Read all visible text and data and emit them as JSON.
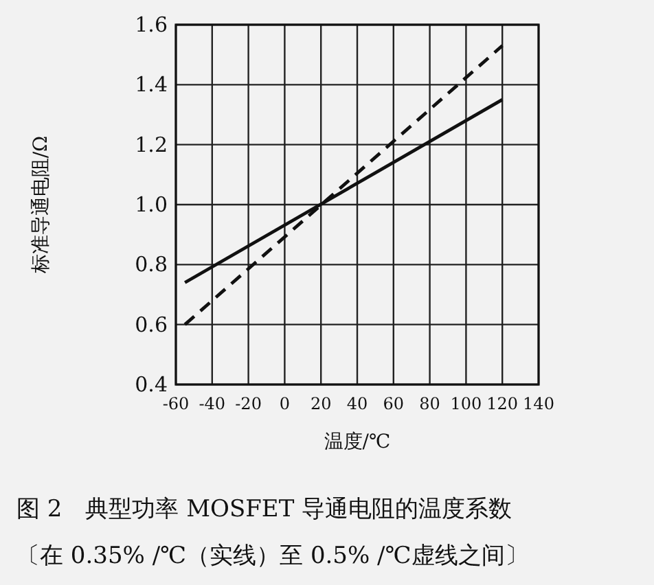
{
  "chart_data": {
    "type": "line",
    "title": "图 2　典型功率 MOSFET 导通电阻的温度系数",
    "subtitle": "〔在 0.35% /℃（实线）至 0.5% /℃虚线之间〕",
    "xlabel": "温度/℃",
    "ylabel": "标准导通电阻/Ω",
    "x": [
      -55,
      120
    ],
    "series": [
      {
        "color": "#111111",
        "line_style": "solid",
        "values": [
          0.74,
          1.35
        ]
      },
      {
        "color": "#111111",
        "line_style": "dashed",
        "values": [
          0.6,
          1.53
        ]
      }
    ],
    "xlim": [
      -60,
      140
    ],
    "xticks": [
      -60,
      -40,
      -20,
      0,
      20,
      40,
      60,
      80,
      100,
      120,
      140
    ],
    "ylim": [
      0.4,
      1.6
    ],
    "yticks": [
      {
        "value": 0.4,
        "label": "0.4"
      },
      {
        "value": 0.6,
        "label": "0.6"
      },
      {
        "value": 0.8,
        "label": "0.8"
      },
      {
        "value": 1.0,
        "label": "1.0"
      },
      {
        "value": 1.2,
        "label": "1.2"
      },
      {
        "value": 1.4,
        "label": "1.4"
      },
      {
        "value": 1.6,
        "label": "1.6"
      }
    ],
    "grid": true
  }
}
